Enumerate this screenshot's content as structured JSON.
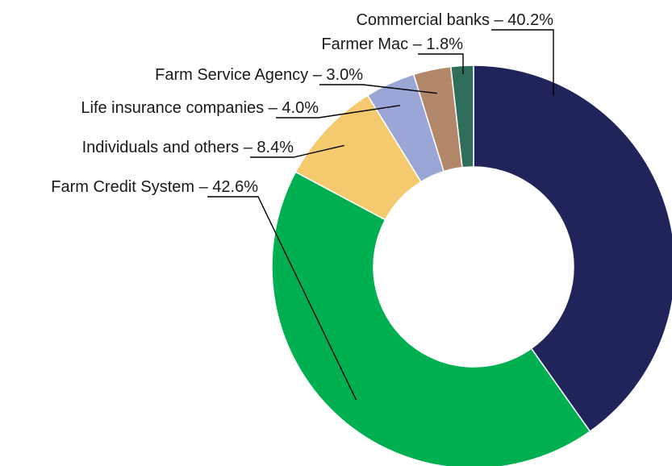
{
  "chart_data": {
    "type": "pie",
    "variant": "donut",
    "title": "",
    "start_angle_deg": 0,
    "direction": "clockwise",
    "slices": [
      {
        "name": "Commercial banks",
        "value": 40.2,
        "value_label": "40.2%",
        "color": "#20245a"
      },
      {
        "name": "Farm Credit System",
        "value": 42.6,
        "value_label": "42.6%",
        "color": "#00b050"
      },
      {
        "name": "Individuals and others",
        "value": 8.4,
        "value_label": "8.4%",
        "color": "#f5ca6e"
      },
      {
        "name": "Life insurance companies",
        "value": 4.0,
        "value_label": "4.0%",
        "color": "#9aa7d6"
      },
      {
        "name": "Farm Service Agency",
        "value": 3.0,
        "value_label": "3.0%",
        "color": "#b3876a"
      },
      {
        "name": "Farmer Mac",
        "value": 1.8,
        "value_label": "1.8%",
        "color": "#2f6e5a"
      }
    ],
    "separator": " – "
  }
}
